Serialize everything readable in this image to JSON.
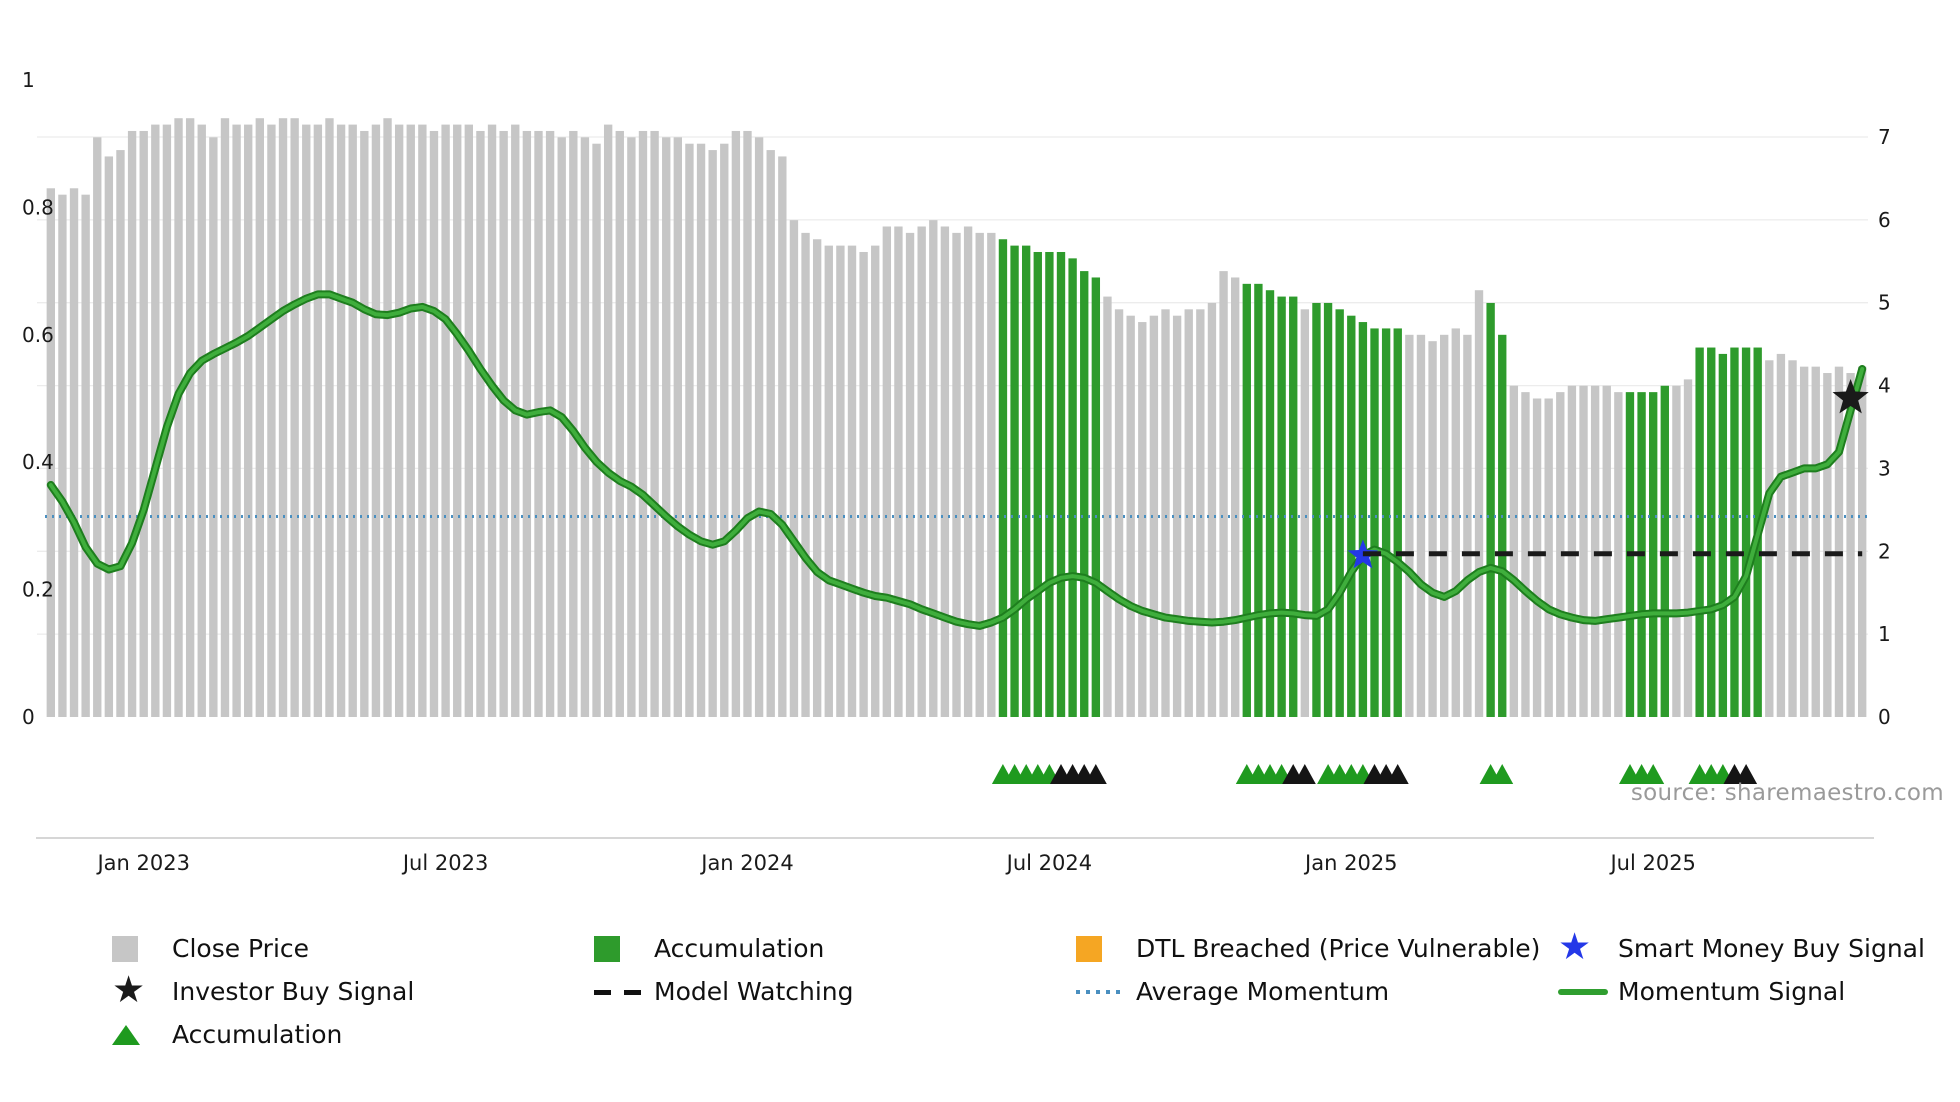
{
  "meta": {
    "source": "source: sharemaestro.com"
  },
  "colors": {
    "close_price": "#c6c6c6",
    "accumulation": "#2e9b2c",
    "dtl_breached": "#f5a623",
    "smart_money": "#2438e8",
    "investor": "#1a1a1a",
    "model_watching": "#1a1a1a",
    "average_momentum": "#4a8fc0",
    "momentum": "#3fae3c",
    "momentum_edge": "#1e7e1e",
    "triangle_accumulation": "#1f9a1f",
    "triangle_investor": "#151515",
    "grid": "#ececec",
    "axis_line": "#c9c9c9"
  },
  "axes": {
    "left_ticks": [
      {
        "v": 0,
        "label": "0"
      },
      {
        "v": 0.2,
        "label": "0.2"
      },
      {
        "v": 0.4,
        "label": "0.4"
      },
      {
        "v": 0.6,
        "label": "0.6"
      },
      {
        "v": 0.8,
        "label": "0.8"
      },
      {
        "v": 1,
        "label": "1"
      }
    ],
    "right_ticks": [
      {
        "v": 0,
        "label": "0"
      },
      {
        "v": 1,
        "label": "1"
      },
      {
        "v": 2,
        "label": "2"
      },
      {
        "v": 3,
        "label": "3"
      },
      {
        "v": 4,
        "label": "4"
      },
      {
        "v": 5,
        "label": "5"
      },
      {
        "v": 6,
        "label": "6"
      },
      {
        "v": 7,
        "label": "7"
      }
    ],
    "x_ticks": [
      {
        "i": 8,
        "label": "Jan 2023"
      },
      {
        "i": 34,
        "label": "Jul 2023"
      },
      {
        "i": 60,
        "label": "Jan 2024"
      },
      {
        "i": 86,
        "label": "Jul 2024"
      },
      {
        "i": 112,
        "label": "Jan 2025"
      },
      {
        "i": 138,
        "label": "Jul 2025"
      }
    ]
  },
  "chart_data": {
    "type": "bar+line",
    "title": "",
    "xlabel": "",
    "ylabel_left": "",
    "ylabel_right": "",
    "frequency": "weekly",
    "left_ylim": [
      0,
      1
    ],
    "right_ylim": [
      0,
      7
    ],
    "legend_position": "bottom",
    "close_price": [
      0.83,
      0.82,
      0.83,
      0.82,
      0.91,
      0.88,
      0.89,
      0.92,
      0.92,
      0.93,
      0.93,
      0.94,
      0.94,
      0.93,
      0.91,
      0.94,
      0.93,
      0.93,
      0.94,
      0.93,
      0.94,
      0.94,
      0.93,
      0.93,
      0.94,
      0.93,
      0.93,
      0.92,
      0.93,
      0.94,
      0.93,
      0.93,
      0.93,
      0.92,
      0.93,
      0.93,
      0.93,
      0.92,
      0.93,
      0.92,
      0.93,
      0.92,
      0.92,
      0.92,
      0.91,
      0.92,
      0.91,
      0.9,
      0.93,
      0.92,
      0.91,
      0.92,
      0.92,
      0.91,
      0.91,
      0.9,
      0.9,
      0.89,
      0.9,
      0.92,
      0.92,
      0.91,
      0.89,
      0.88,
      0.78,
      0.76,
      0.75,
      0.74,
      0.74,
      0.74,
      0.73,
      0.74,
      0.77,
      0.77,
      0.76,
      0.77,
      0.78,
      0.77,
      0.76,
      0.77,
      0.76,
      0.76,
      0.75,
      0.74,
      0.74,
      0.73,
      0.73,
      0.73,
      0.72,
      0.7,
      0.69,
      0.66,
      0.64,
      0.63,
      0.62,
      0.63,
      0.64,
      0.63,
      0.64,
      0.64,
      0.65,
      0.7,
      0.69,
      0.68,
      0.68,
      0.67,
      0.66,
      0.66,
      0.64,
      0.65,
      0.65,
      0.64,
      0.63,
      0.62,
      0.61,
      0.61,
      0.61,
      0.6,
      0.6,
      0.59,
      0.6,
      0.61,
      0.6,
      0.67,
      0.65,
      0.6,
      0.52,
      0.51,
      0.5,
      0.5,
      0.51,
      0.52,
      0.52,
      0.52,
      0.52,
      0.51,
      0.51,
      0.51,
      0.51,
      0.52,
      0.52,
      0.53,
      0.58,
      0.58,
      0.57,
      0.58,
      0.58,
      0.58,
      0.56,
      0.57,
      0.56,
      0.55,
      0.55,
      0.54,
      0.55,
      0.54,
      0.55
    ],
    "accumulation_ranges": [
      [
        82,
        90
      ],
      [
        103,
        107
      ],
      [
        109,
        116
      ],
      [
        124,
        125
      ],
      [
        136,
        139
      ],
      [
        142,
        147
      ]
    ],
    "momentum": [
      2.8,
      2.6,
      2.35,
      2.05,
      1.85,
      1.78,
      1.82,
      2.1,
      2.5,
      3.0,
      3.5,
      3.9,
      4.15,
      4.3,
      4.38,
      4.45,
      4.52,
      4.6,
      4.7,
      4.8,
      4.9,
      4.98,
      5.05,
      5.1,
      5.1,
      5.05,
      5.0,
      4.92,
      4.86,
      4.85,
      4.88,
      4.93,
      4.95,
      4.9,
      4.8,
      4.62,
      4.42,
      4.2,
      4.0,
      3.82,
      3.7,
      3.65,
      3.68,
      3.7,
      3.62,
      3.45,
      3.25,
      3.08,
      2.95,
      2.85,
      2.78,
      2.68,
      2.55,
      2.42,
      2.3,
      2.2,
      2.12,
      2.08,
      2.12,
      2.25,
      2.4,
      2.48,
      2.45,
      2.32,
      2.12,
      1.92,
      1.75,
      1.65,
      1.6,
      1.55,
      1.5,
      1.46,
      1.44,
      1.4,
      1.36,
      1.3,
      1.25,
      1.2,
      1.15,
      1.12,
      1.1,
      1.14,
      1.2,
      1.3,
      1.42,
      1.52,
      1.62,
      1.68,
      1.7,
      1.68,
      1.62,
      1.52,
      1.42,
      1.34,
      1.28,
      1.24,
      1.2,
      1.18,
      1.16,
      1.15,
      1.14,
      1.15,
      1.17,
      1.2,
      1.23,
      1.25,
      1.26,
      1.25,
      1.23,
      1.22,
      1.3,
      1.5,
      1.75,
      1.95,
      2.02,
      1.97,
      1.87,
      1.75,
      1.6,
      1.5,
      1.45,
      1.52,
      1.65,
      1.75,
      1.8,
      1.76,
      1.65,
      1.52,
      1.4,
      1.3,
      1.24,
      1.2,
      1.17,
      1.16,
      1.18,
      1.2,
      1.22,
      1.24,
      1.25,
      1.25,
      1.25,
      1.26,
      1.28,
      1.3,
      1.35,
      1.45,
      1.7,
      2.2,
      2.7,
      2.9,
      2.95,
      3.0,
      3.0,
      3.05,
      3.2,
      3.7,
      4.2
    ],
    "average_momentum": 2.42,
    "model_watching": {
      "start_index": 113,
      "end_index": 156,
      "value": 1.97
    },
    "smart_money_buy": {
      "index": 113,
      "value": 1.95
    },
    "investor_buy": {
      "index": 155,
      "value": 3.85
    },
    "accumulation_markers": [
      82,
      83,
      84,
      85,
      86,
      103,
      104,
      105,
      106,
      110,
      111,
      112,
      113,
      124,
      125,
      136,
      137,
      138,
      142,
      143,
      144
    ],
    "investor_markers": [
      87,
      88,
      89,
      90,
      107,
      108,
      114,
      115,
      116,
      145,
      146
    ]
  },
  "legend": {
    "close_price": "Close Price",
    "accumulation_bar": "Accumulation",
    "dtl_breached": "DTL Breached (Price Vulnerable)",
    "smart_money": "Smart Money Buy Signal",
    "investor_buy": "Investor Buy Signal",
    "model_watching": "Model Watching",
    "average_momentum": "Average Momentum",
    "momentum_signal": "Momentum Signal",
    "accumulation_marker": "Accumulation"
  }
}
